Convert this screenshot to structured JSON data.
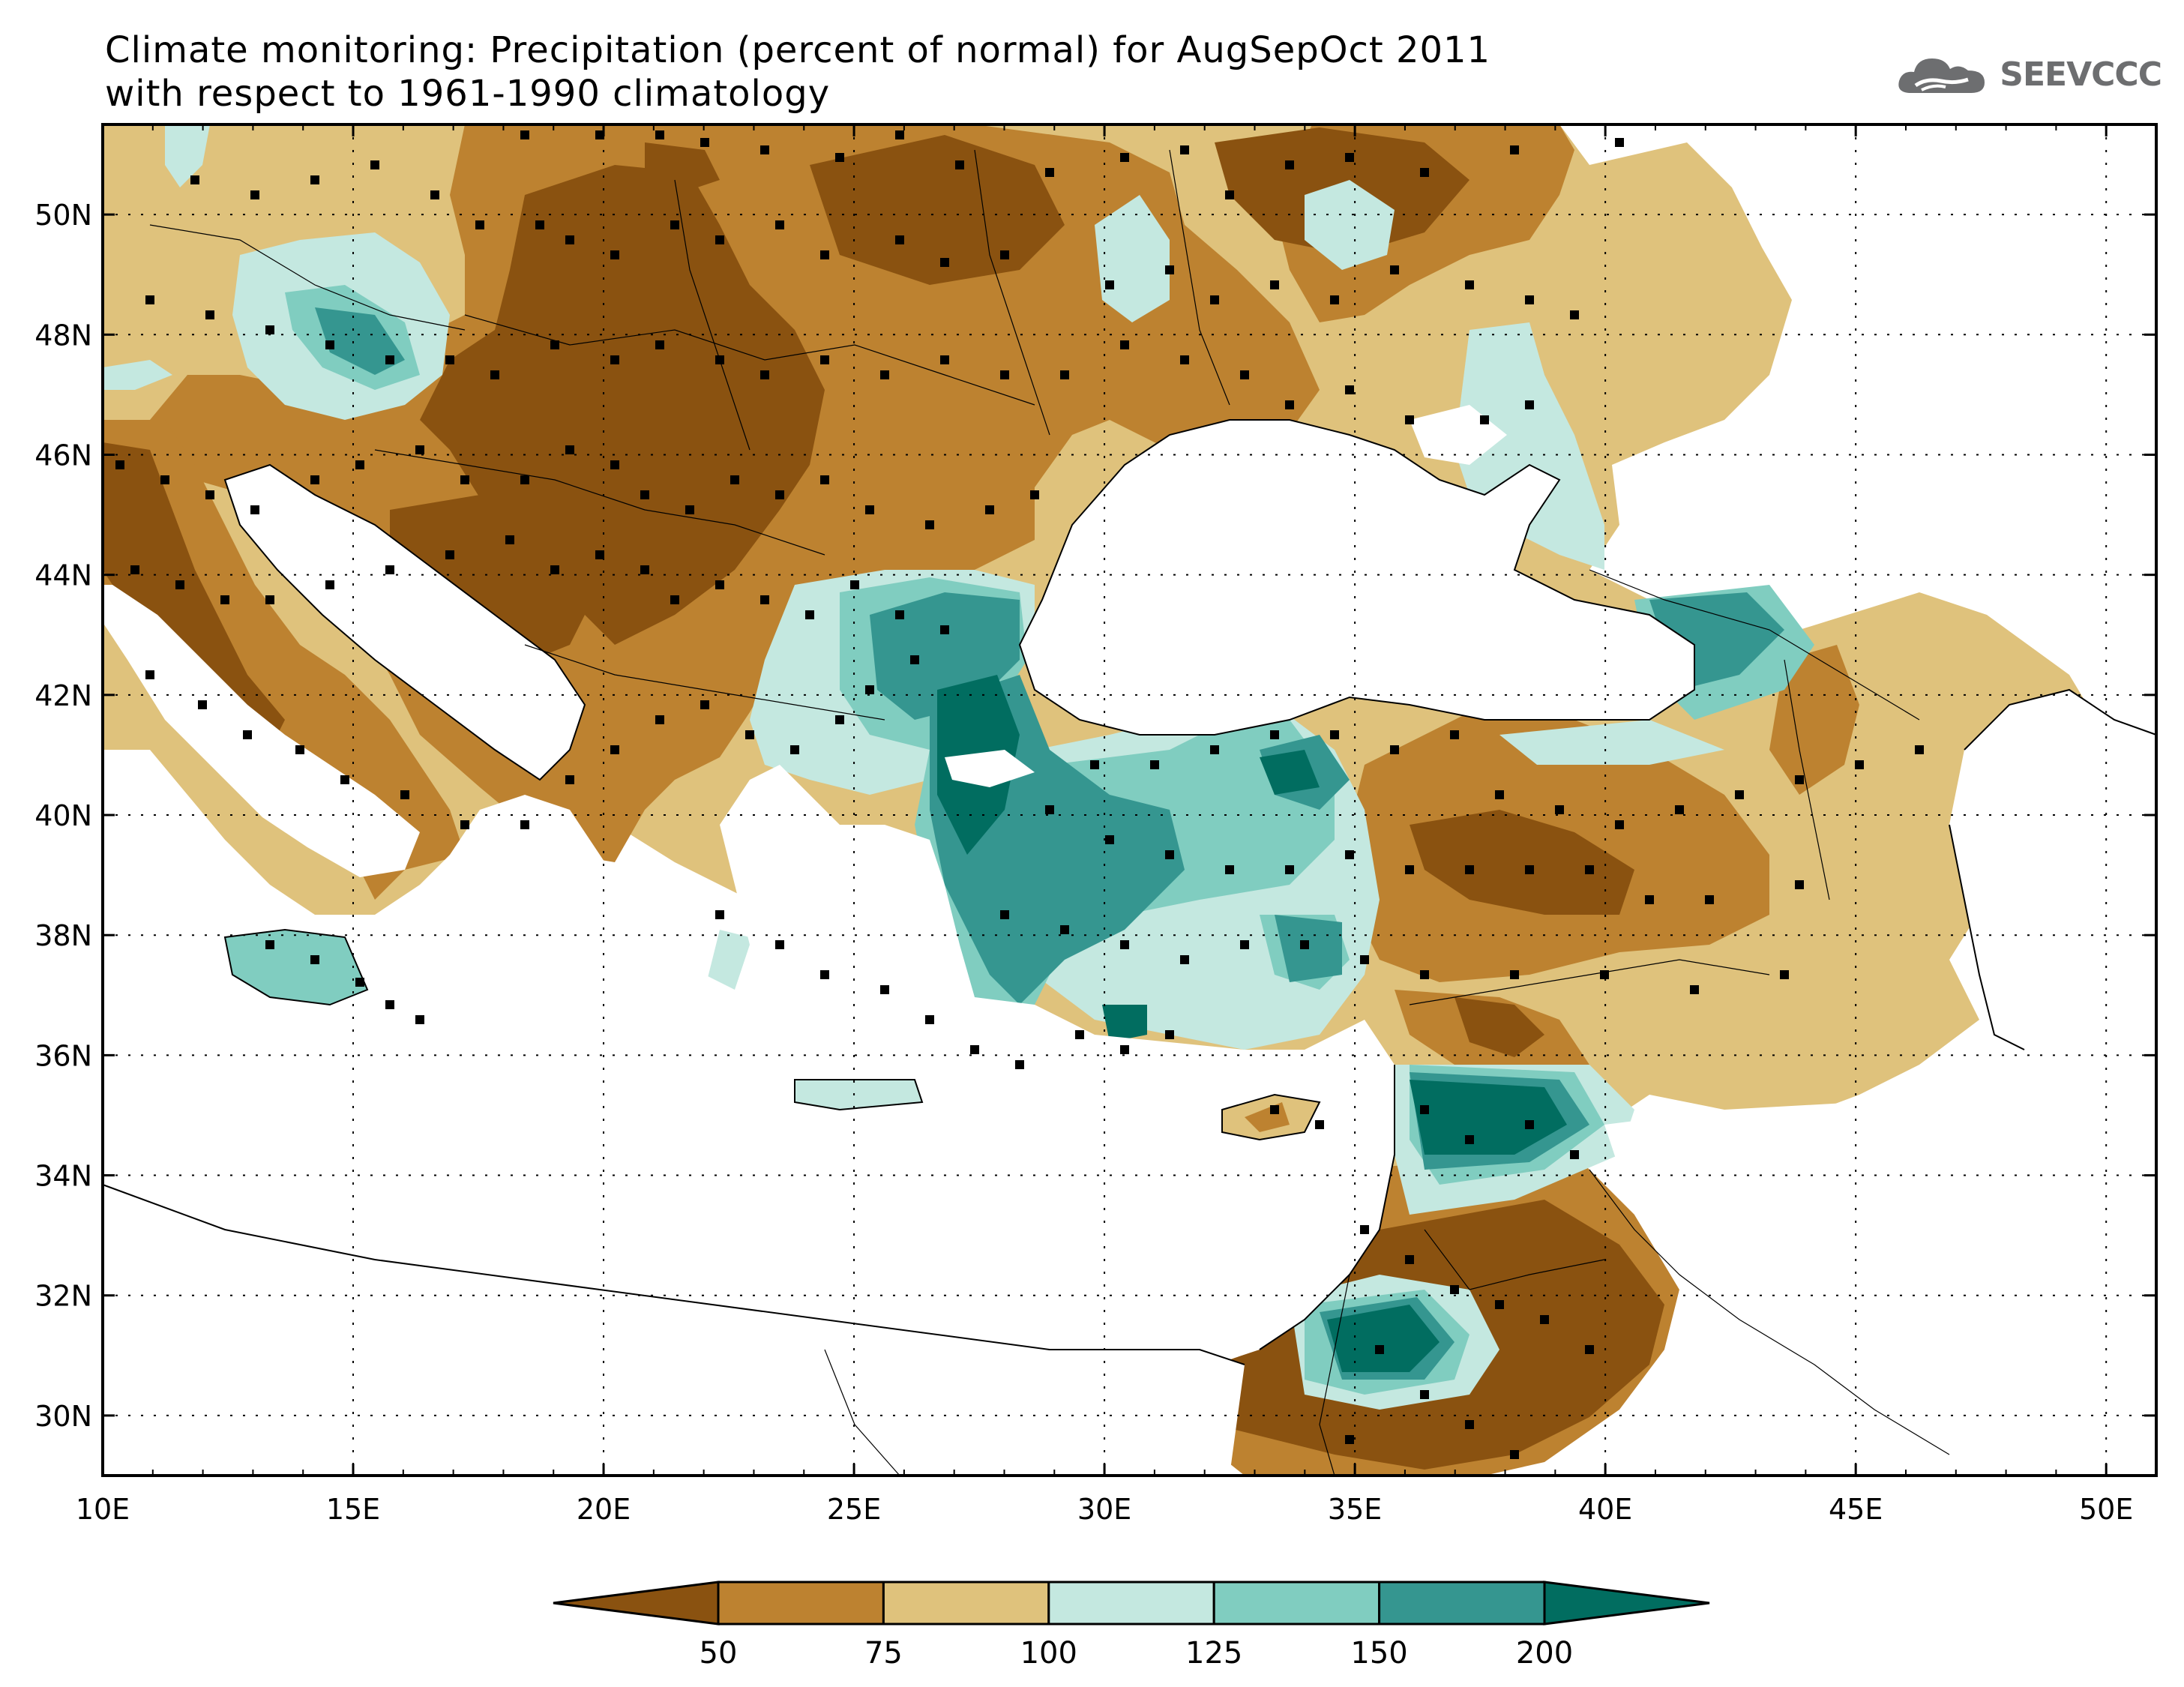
{
  "title": {
    "line1": "Climate monitoring: Precipitation (percent of normal) for AugSepOct 2011",
    "line2": "with respect to 1961-1990 climatology"
  },
  "logo": {
    "text": "SEEVCCC",
    "icon": "cloud-logo-icon"
  },
  "map": {
    "lon_range": [
      10,
      51
    ],
    "lat_range": [
      29,
      51.5
    ],
    "lon_ticks": [
      {
        "value": 10,
        "label": "10E"
      },
      {
        "value": 15,
        "label": "15E"
      },
      {
        "value": 20,
        "label": "20E"
      },
      {
        "value": 25,
        "label": "25E"
      },
      {
        "value": 30,
        "label": "30E"
      },
      {
        "value": 35,
        "label": "35E"
      },
      {
        "value": 40,
        "label": "40E"
      },
      {
        "value": 45,
        "label": "45E"
      },
      {
        "value": 50,
        "label": "50E"
      }
    ],
    "lat_ticks": [
      {
        "value": 30,
        "label": "30N"
      },
      {
        "value": 32,
        "label": "32N"
      },
      {
        "value": 34,
        "label": "34N"
      },
      {
        "value": 36,
        "label": "36N"
      },
      {
        "value": 38,
        "label": "38N"
      },
      {
        "value": 40,
        "label": "40N"
      },
      {
        "value": 42,
        "label": "42N"
      },
      {
        "value": 44,
        "label": "44N"
      },
      {
        "value": 46,
        "label": "46N"
      },
      {
        "value": 48,
        "label": "48N"
      },
      {
        "value": 50,
        "label": "50N"
      }
    ],
    "grid": "dotted"
  },
  "legend": {
    "labels": [
      "50",
      "75",
      "100",
      "125",
      "150",
      "200"
    ],
    "colors": [
      "#8a5210",
      "#bd8230",
      "#dfc27c",
      "#c4e8e0",
      "#80cdc0",
      "#359690",
      "#016d60"
    ]
  }
}
